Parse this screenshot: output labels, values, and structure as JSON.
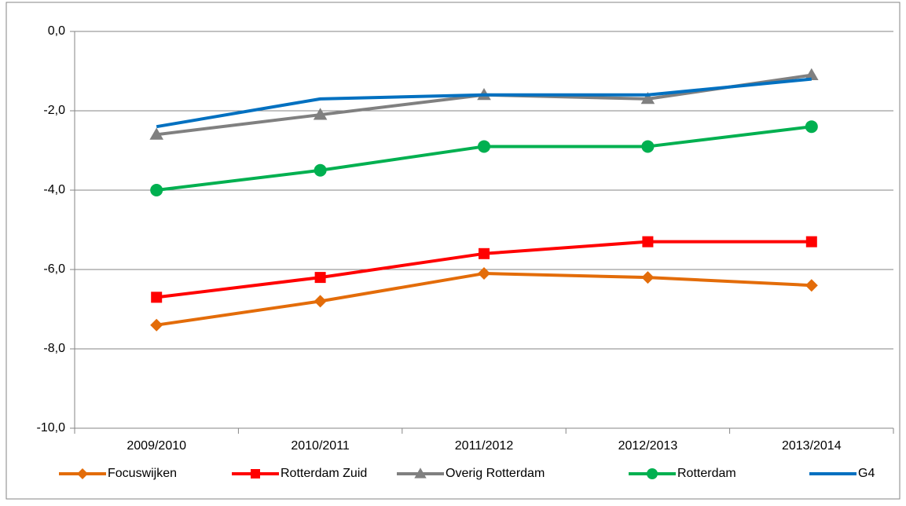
{
  "chart_data": {
    "type": "line",
    "categories": [
      "2009/2010",
      "2010/2011",
      "2011/2012",
      "2012/2013",
      "2013/2014"
    ],
    "series": [
      {
        "name": "Focuswijken",
        "color": "#e36c09",
        "marker": "diamond",
        "values": [
          -7.4,
          -6.8,
          -6.1,
          -6.2,
          -6.4
        ]
      },
      {
        "name": "Rotterdam Zuid",
        "color": "#ff0000",
        "marker": "square",
        "values": [
          -6.7,
          -6.2,
          -5.6,
          -5.3,
          -5.3
        ]
      },
      {
        "name": "Overig Rotterdam",
        "color": "#808080",
        "marker": "triangle",
        "values": [
          -2.6,
          -2.1,
          -1.6,
          -1.7,
          -1.1
        ]
      },
      {
        "name": "Rotterdam",
        "color": "#00b050",
        "marker": "circle",
        "values": [
          -4.0,
          -3.5,
          -2.9,
          -2.9,
          -2.4
        ]
      },
      {
        "name": "G4",
        "color": "#0070c0",
        "marker": "none",
        "values": [
          -2.4,
          -1.7,
          -1.6,
          -1.6,
          -1.2
        ]
      }
    ],
    "ylim": [
      -10,
      0
    ],
    "yticks": [
      {
        "value": -10,
        "label": "-10,0"
      },
      {
        "value": -8,
        "label": "-8,0"
      },
      {
        "value": -6,
        "label": "-6,0"
      },
      {
        "value": -4,
        "label": "-4,0"
      },
      {
        "value": -2,
        "label": "-2,0"
      },
      {
        "value": 0,
        "label": "0,0"
      }
    ],
    "grid": true,
    "legend": "bottom"
  }
}
